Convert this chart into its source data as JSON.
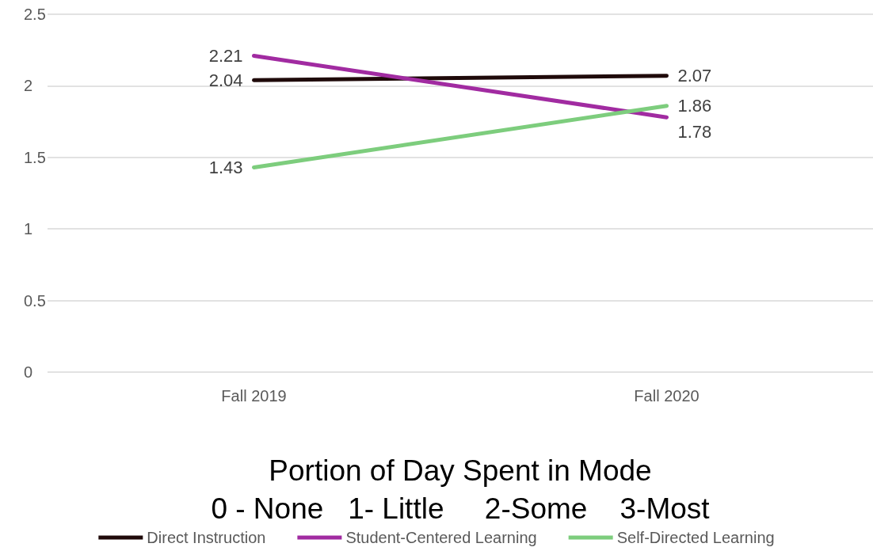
{
  "chart_data": {
    "type": "line",
    "xlabel": "Portion of Day Spent in Mode\n0 - None   1- Little     2-Some    3-Most",
    "categories": [
      "Fall 2019",
      "Fall 2020"
    ],
    "series": [
      {
        "name": "Direct Instruction",
        "color": "#1f0a0a",
        "values": [
          2.04,
          2.07
        ]
      },
      {
        "name": "Student-Centered Learning",
        "color": "#a12ba1",
        "values": [
          2.21,
          1.78
        ]
      },
      {
        "name": "Self-Directed Learning",
        "color": "#7dcd7d",
        "values": [
          1.43,
          1.86
        ]
      }
    ],
    "ylim": [
      0,
      2.5
    ],
    "yticks": [
      0,
      0.5,
      1,
      1.5,
      2,
      2.5
    ],
    "grid": "y",
    "legend": "bottom",
    "data_labels": true,
    "marker": "none",
    "line_style": "solid"
  }
}
